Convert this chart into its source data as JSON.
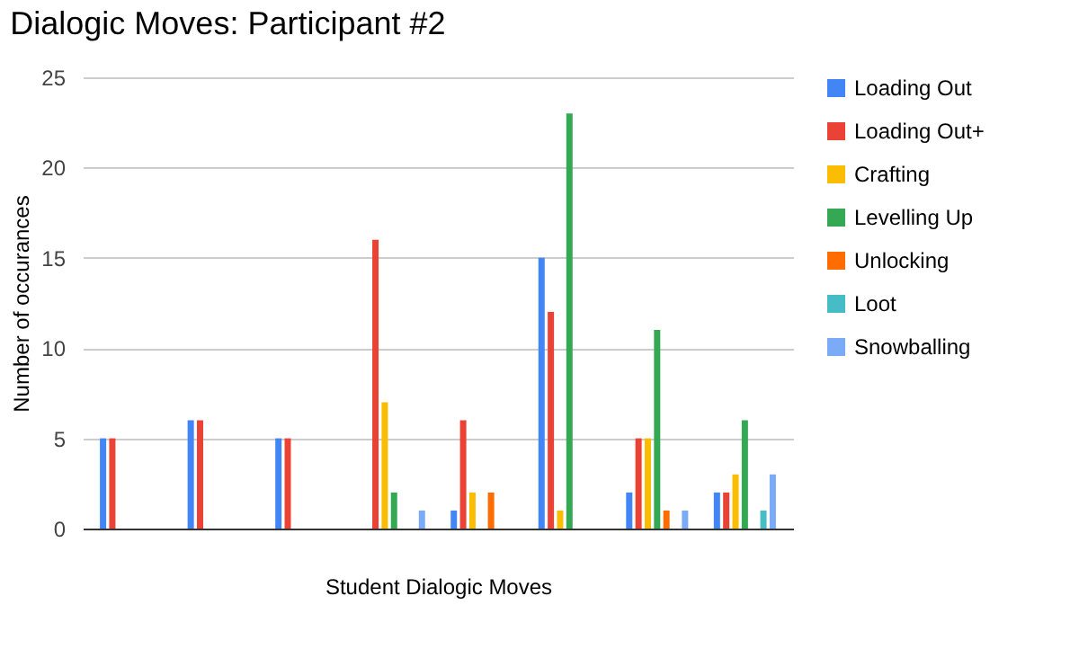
{
  "chart_data": {
    "type": "bar",
    "title": "Dialogic Moves: Participant #2",
    "xlabel": "Student Dialogic Moves",
    "ylabel": "Number of occurances",
    "categories": [
      null,
      null,
      null,
      null,
      null,
      null,
      null,
      null
    ],
    "series": [
      {
        "name": "Loading Out",
        "color": "#4285f4",
        "values": [
          5,
          6,
          5,
          0,
          1,
          15,
          2,
          2
        ]
      },
      {
        "name": "Loading Out+",
        "color": "#ea4335",
        "values": [
          5,
          6,
          5,
          16,
          6,
          12,
          5,
          2
        ]
      },
      {
        "name": "Crafting",
        "color": "#fbbc04",
        "values": [
          0,
          0,
          0,
          7,
          2,
          1,
          5,
          3
        ]
      },
      {
        "name": "Levelling Up",
        "color": "#34a853",
        "values": [
          0,
          0,
          0,
          2,
          0,
          23,
          11,
          6
        ]
      },
      {
        "name": "Unlocking",
        "color": "#ff6d01",
        "values": [
          0,
          0,
          0,
          0,
          2,
          0,
          1,
          0
        ]
      },
      {
        "name": "Loot",
        "color": "#46bdc6",
        "values": [
          0,
          0,
          0,
          0,
          0,
          0,
          0,
          1
        ]
      },
      {
        "name": "Snowballing",
        "color": "#7baaf7",
        "values": [
          0,
          0,
          0,
          1,
          0,
          0,
          1,
          3
        ]
      }
    ],
    "ylim": [
      0,
      25
    ],
    "yticks": [
      0,
      5,
      10,
      15,
      20,
      25
    ],
    "grid": "y",
    "legend": "right"
  }
}
